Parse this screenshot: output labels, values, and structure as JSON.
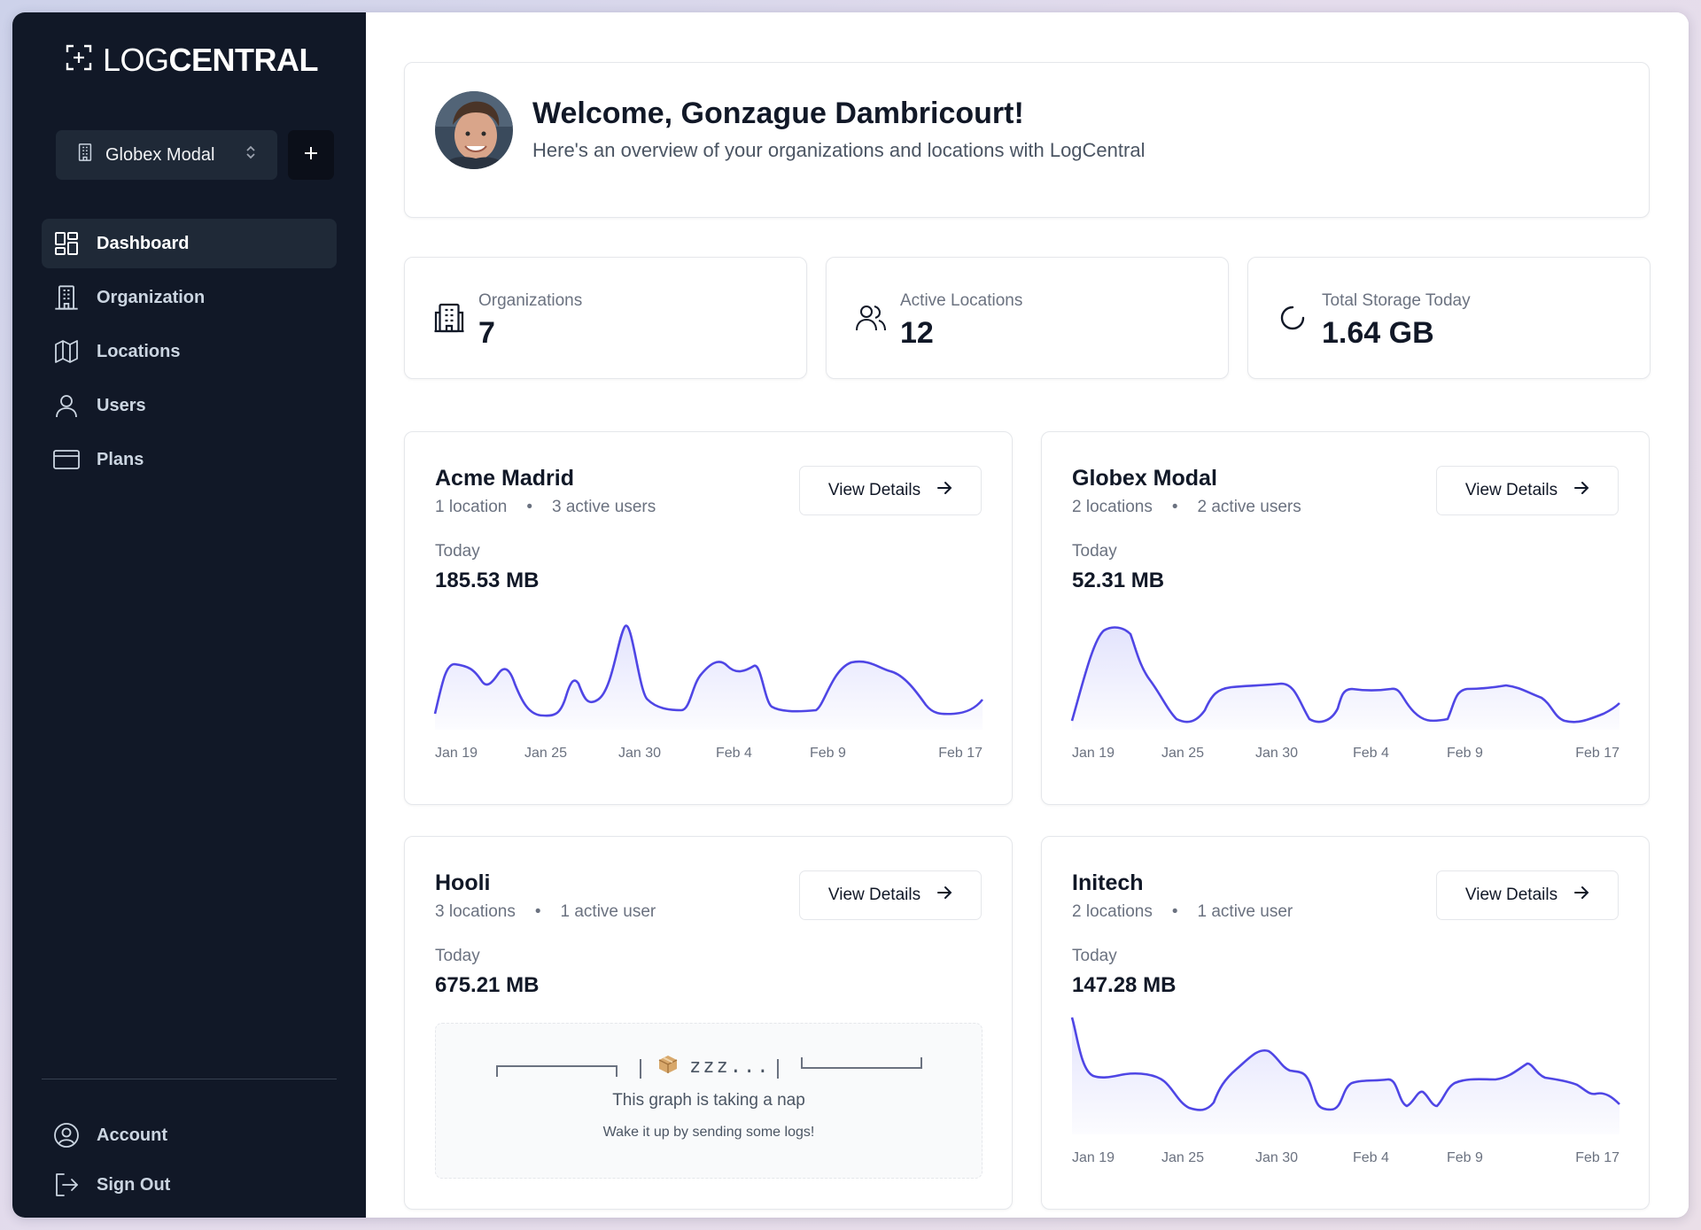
{
  "app": {
    "logo_light": "LOG",
    "logo_bold": "CENTRAL"
  },
  "sidebar": {
    "org_switch": {
      "label": "Globex Modal"
    },
    "items": [
      {
        "label": "Dashboard",
        "icon": "dashboard-icon",
        "active": true
      },
      {
        "label": "Organization",
        "icon": "building-icon"
      },
      {
        "label": "Locations",
        "icon": "map-icon"
      },
      {
        "label": "Users",
        "icon": "user-icon"
      },
      {
        "label": "Plans",
        "icon": "credit-card-icon"
      }
    ],
    "bottom": [
      {
        "label": "Account",
        "icon": "account-circle-icon"
      },
      {
        "label": "Sign Out",
        "icon": "sign-out-icon"
      }
    ]
  },
  "welcome": {
    "title": "Welcome, Gonzague Dambricourt!",
    "subtitle": "Here's an overview of your organizations and locations with LogCentral"
  },
  "stats": [
    {
      "label": "Organizations",
      "value": "7",
      "icon": "building-icon"
    },
    {
      "label": "Active Locations",
      "value": "12",
      "icon": "users-icon"
    },
    {
      "label": "Total Storage Today",
      "value": "1.64 GB",
      "icon": "loading-circle-icon"
    }
  ],
  "view_details_label": "View Details",
  "today_label": "Today",
  "x_labels": [
    "Jan 19",
    "Jan 25",
    "Jan 30",
    "Feb 4",
    "Feb 9",
    "Feb 17"
  ],
  "orgs": [
    {
      "name": "Acme Madrid",
      "locations": "1 location",
      "users": "3 active users",
      "size": "185.53 MB"
    },
    {
      "name": "Globex Modal",
      "locations": "2 locations",
      "users": "2 active users",
      "size": "52.31 MB"
    },
    {
      "name": "Hooli",
      "locations": "3 locations",
      "users": "1 active user",
      "size": "675.21 MB"
    },
    {
      "name": "Initech",
      "locations": "2 locations",
      "users": "1 active user",
      "size": "147.28 MB"
    }
  ],
  "nap": {
    "art_text": "zzz...",
    "title": "This graph is taking a nap",
    "subtitle": "Wake it up by sending some logs!"
  },
  "colors": {
    "sidebar_bg": "#111827",
    "accent": "#4f46e5"
  }
}
